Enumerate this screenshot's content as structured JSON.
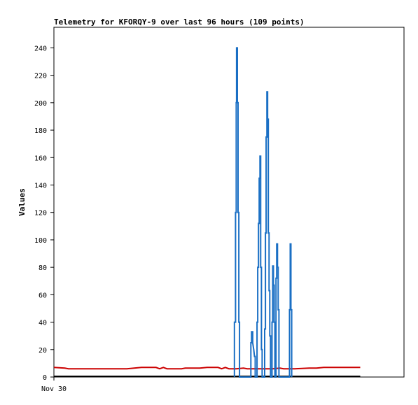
{
  "chart_data": {
    "type": "line",
    "title": "Telemetry for KFORQY-9 over last 96 hours (109 points)",
    "xlabel": "",
    "ylabel": "Values",
    "ylim": [
      0,
      255
    ],
    "xlim_hours": [
      0,
      96
    ],
    "grid": false,
    "legend": "none",
    "x_tick_labels": [
      {
        "label": "Nov 30",
        "hour": 0
      }
    ],
    "y_ticks": [
      0,
      20,
      40,
      60,
      80,
      100,
      120,
      140,
      160,
      180,
      200,
      220,
      240
    ],
    "series": [
      {
        "color": "#cc0000",
        "points": [
          [
            0,
            7
          ],
          [
            3,
            6.5
          ],
          [
            4,
            6
          ],
          [
            10,
            6
          ],
          [
            20,
            6
          ],
          [
            22,
            6.5
          ],
          [
            24,
            7
          ],
          [
            28,
            7
          ],
          [
            29,
            6
          ],
          [
            30,
            7
          ],
          [
            31,
            6
          ],
          [
            32,
            6
          ],
          [
            35,
            6
          ],
          [
            36,
            6.5
          ],
          [
            40,
            6.5
          ],
          [
            42,
            7
          ],
          [
            45,
            7
          ],
          [
            46,
            6
          ],
          [
            47,
            7
          ],
          [
            48,
            6
          ],
          [
            50,
            6
          ],
          [
            52,
            6.5
          ],
          [
            53,
            6
          ],
          [
            60,
            6
          ],
          [
            62,
            6.5
          ],
          [
            63,
            6
          ],
          [
            66,
            6
          ],
          [
            70,
            6.5
          ],
          [
            72,
            6.5
          ],
          [
            74,
            7
          ],
          [
            78,
            7
          ],
          [
            84,
            7
          ]
        ]
      },
      {
        "color": "#000000",
        "points": [
          [
            0,
            0.5
          ],
          [
            84,
            0.5
          ]
        ]
      },
      {
        "color": "#1a6fc4",
        "points": [
          [
            49.5,
            0
          ],
          [
            49.5,
            40
          ],
          [
            49.8,
            40
          ],
          [
            49.8,
            120
          ],
          [
            50,
            120
          ],
          [
            50,
            200
          ],
          [
            50.1,
            200
          ],
          [
            50.1,
            240
          ],
          [
            50.3,
            240
          ],
          [
            50.3,
            200
          ],
          [
            50.5,
            200
          ],
          [
            50.5,
            120
          ],
          [
            50.7,
            120
          ],
          [
            50.7,
            40
          ],
          [
            50.9,
            40
          ],
          [
            50.9,
            0
          ],
          [
            54,
            0
          ],
          [
            54,
            25
          ],
          [
            54.2,
            25
          ],
          [
            54.2,
            33
          ],
          [
            54.5,
            33
          ],
          [
            54.5,
            25
          ],
          [
            54.8,
            20
          ],
          [
            55,
            15
          ],
          [
            55.2,
            15
          ],
          [
            55.2,
            0
          ],
          [
            55.7,
            0
          ],
          [
            55.7,
            40
          ],
          [
            55.9,
            40
          ],
          [
            55.9,
            80
          ],
          [
            56.1,
            80
          ],
          [
            56.1,
            112
          ],
          [
            56.3,
            112
          ],
          [
            56.3,
            145
          ],
          [
            56.5,
            145
          ],
          [
            56.5,
            161
          ],
          [
            56.7,
            161
          ],
          [
            56.7,
            80
          ],
          [
            56.9,
            80
          ],
          [
            56.9,
            20
          ],
          [
            57.1,
            20
          ],
          [
            57.1,
            0
          ],
          [
            57.8,
            0
          ],
          [
            57.8,
            35
          ],
          [
            58,
            35
          ],
          [
            58,
            105
          ],
          [
            58.2,
            105
          ],
          [
            58.2,
            175
          ],
          [
            58.4,
            175
          ],
          [
            58.4,
            208
          ],
          [
            58.6,
            208
          ],
          [
            58.6,
            188
          ],
          [
            58.8,
            188
          ],
          [
            58.8,
            105
          ],
          [
            59,
            105
          ],
          [
            59,
            63
          ],
          [
            59.2,
            63
          ],
          [
            59.2,
            30
          ],
          [
            59.4,
            30
          ],
          [
            59.4,
            0
          ],
          [
            59.8,
            0
          ],
          [
            59.8,
            40
          ],
          [
            60,
            40
          ],
          [
            60,
            81
          ],
          [
            60.2,
            81
          ],
          [
            60.2,
            67
          ],
          [
            60.4,
            67
          ],
          [
            60.4,
            40
          ],
          [
            60.6,
            40
          ],
          [
            60.6,
            0
          ],
          [
            60.9,
            0
          ],
          [
            60.9,
            72
          ],
          [
            61.1,
            72
          ],
          [
            61.1,
            97
          ],
          [
            61.3,
            97
          ],
          [
            61.3,
            80
          ],
          [
            61.5,
            80
          ],
          [
            61.5,
            49
          ],
          [
            61.7,
            49
          ],
          [
            61.7,
            0
          ],
          [
            64.6,
            0
          ],
          [
            64.6,
            49
          ],
          [
            64.8,
            49
          ],
          [
            64.8,
            97
          ],
          [
            65,
            97
          ],
          [
            65,
            49
          ],
          [
            65.2,
            49
          ],
          [
            65.2,
            0
          ]
        ]
      }
    ]
  }
}
